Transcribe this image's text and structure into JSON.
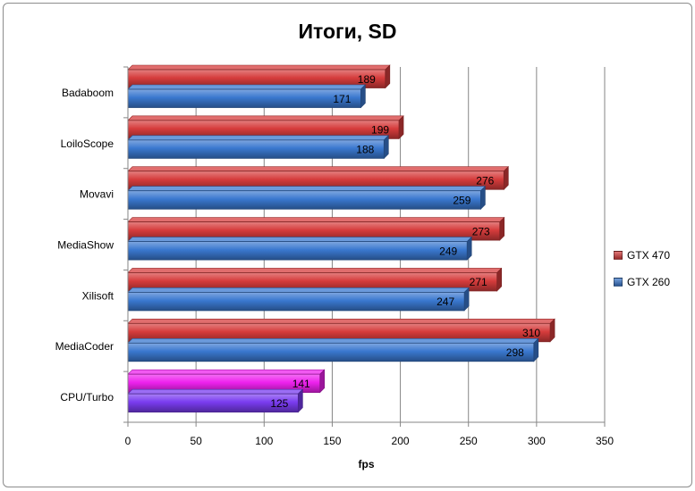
{
  "chart_data": {
    "type": "bar",
    "orientation": "horizontal",
    "title": "Итоги, SD",
    "xlabel": "fps",
    "ylabel": "",
    "xlim": [
      0,
      350
    ],
    "x_ticks": [
      0,
      50,
      100,
      150,
      200,
      250,
      300,
      350
    ],
    "grid": true,
    "legend_position": "right",
    "categories": [
      "Badaboom",
      "LoiloScope",
      "Movavi",
      "MediaShow",
      "Xilisoft",
      "MediaCoder",
      "CPU/Turbo"
    ],
    "series": [
      {
        "name": "GTX 470",
        "color": "#d63c3c",
        "values": [
          189,
          199,
          276,
          273,
          271,
          310,
          141
        ],
        "point_colors": [
          null,
          null,
          null,
          null,
          null,
          null,
          "#ee22ee"
        ]
      },
      {
        "name": "GTX 260",
        "color": "#3a78cf",
        "values": [
          171,
          188,
          259,
          249,
          247,
          298,
          125
        ],
        "point_colors": [
          null,
          null,
          null,
          null,
          null,
          null,
          "#7a3cf0"
        ]
      }
    ]
  }
}
